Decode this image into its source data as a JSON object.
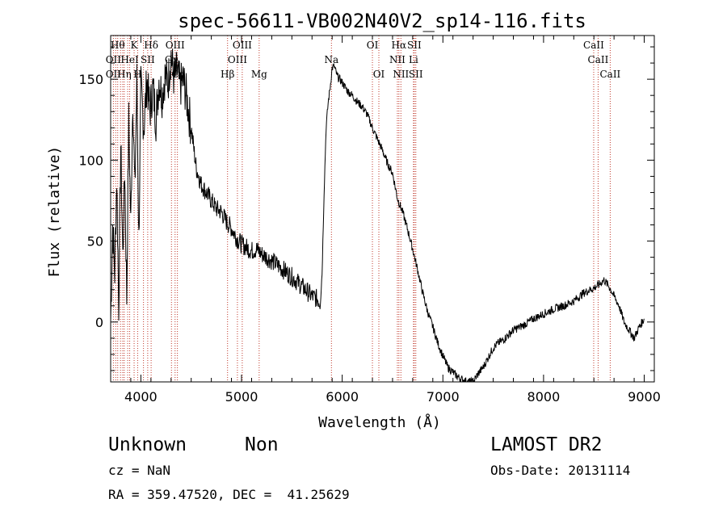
{
  "chart_data": {
    "type": "line",
    "title": "spec-56611-VB002N40V2_sp14-116.fits",
    "xlabel": "Wavelength (Å)",
    "ylabel": "Flux (relative)",
    "xlim": [
      3700,
      9100
    ],
    "ylim": [
      -37,
      177
    ],
    "xticks": [
      4000,
      5000,
      6000,
      7000,
      8000,
      9000
    ],
    "yticks": [
      0,
      50,
      100,
      150
    ],
    "grid": false,
    "series": [
      {
        "color": "#000000",
        "x": [
          3700,
          3720,
          3740,
          3760,
          3780,
          3800,
          3820,
          3840,
          3860,
          3880,
          3900,
          3920,
          3940,
          3960,
          3980,
          4000,
          4030,
          4060,
          4090,
          4120,
          4150,
          4180,
          4210,
          4240,
          4270,
          4300,
          4330,
          4360,
          4390,
          4420,
          4450,
          4500,
          4550,
          4600,
          4650,
          4700,
          4750,
          4800,
          4850,
          4900,
          4950,
          5000,
          5050,
          5100,
          5150,
          5200,
          5300,
          5400,
          5500,
          5600,
          5700,
          5760,
          5780,
          5800,
          5820,
          5840,
          5860,
          5880,
          5900,
          5920,
          5950,
          6000,
          6050,
          6100,
          6150,
          6200,
          6250,
          6300,
          6350,
          6400,
          6450,
          6500,
          6550,
          6600,
          6650,
          6700,
          6750,
          6800,
          6850,
          6900,
          6950,
          7000,
          7050,
          7100,
          7150,
          7200,
          7250,
          7300,
          7350,
          7400,
          7450,
          7500,
          7550,
          7600,
          7650,
          7700,
          7800,
          7900,
          8000,
          8100,
          8200,
          8300,
          8400,
          8500,
          8550,
          8600,
          8650,
          8700,
          8750,
          8800,
          8850,
          8900,
          8950,
          9000
        ],
        "y": [
          0,
          60,
          30,
          90,
          10,
          110,
          40,
          95,
          15,
          125,
          60,
          140,
          80,
          150,
          50,
          145,
          120,
          150,
          130,
          145,
          125,
          150,
          140,
          152,
          148,
          165,
          150,
          155,
          145,
          150,
          140,
          120,
          95,
          85,
          80,
          75,
          70,
          68,
          62,
          58,
          52,
          48,
          46,
          44,
          45,
          42,
          38,
          33,
          28,
          22,
          16,
          14,
          12,
          30,
          80,
          120,
          135,
          145,
          157,
          158,
          152,
          148,
          143,
          140,
          136,
          133,
          128,
          120,
          113,
          106,
          98,
          92,
          76,
          68,
          57,
          45,
          32,
          18,
          6,
          -3,
          -13,
          -21,
          -28,
          -31,
          -34,
          -36,
          -37,
          -37,
          -32,
          -28,
          -22,
          -16,
          -13,
          -11,
          -8,
          -5,
          -2,
          2,
          5,
          8,
          10,
          13,
          18,
          21,
          23,
          26,
          22,
          16,
          10,
          0,
          -5,
          -10,
          -3,
          2
        ]
      }
    ],
    "lines": {
      "color": "#c0392b",
      "positions": [
        3727,
        3750,
        3770,
        3798,
        3820,
        3835,
        3869,
        3889,
        3933,
        3968,
        4026,
        4068,
        4102,
        4304,
        4340,
        4363,
        4861,
        4959,
        5007,
        5175,
        5893,
        6300,
        6364,
        6548,
        6563,
        6583,
        6708,
        6716,
        6731,
        8498,
        8542,
        8662
      ],
      "labels": [
        {
          "text": "Hθ",
          "x": 3770,
          "row": 0
        },
        {
          "text": "K",
          "x": 3933,
          "row": 0
        },
        {
          "text": "Hδ",
          "x": 4102,
          "row": 0
        },
        {
          "text": "OIII",
          "x": 4340,
          "row": 0
        },
        {
          "text": "OIII",
          "x": 5007,
          "row": 0
        },
        {
          "text": "OI",
          "x": 6300,
          "row": 0
        },
        {
          "text": "Hα",
          "x": 6563,
          "row": 0
        },
        {
          "text": "SII",
          "x": 6716,
          "row": 0
        },
        {
          "text": "CaII",
          "x": 8498,
          "row": 0
        },
        {
          "text": "OII",
          "x": 3727,
          "row": 1
        },
        {
          "text": "HeI",
          "x": 3889,
          "row": 1
        },
        {
          "text": "SII",
          "x": 4068,
          "row": 1
        },
        {
          "text": "Gγ",
          "x": 4304,
          "row": 1
        },
        {
          "text": "OIII",
          "x": 4959,
          "row": 1
        },
        {
          "text": "Na",
          "x": 5893,
          "row": 1
        },
        {
          "text": "NII",
          "x": 6548,
          "row": 1
        },
        {
          "text": "Li",
          "x": 6708,
          "row": 1
        },
        {
          "text": "CaII",
          "x": 8542,
          "row": 1
        },
        {
          "text": "OII",
          "x": 3727,
          "row": 2
        },
        {
          "text": "Hη",
          "x": 3835,
          "row": 2
        },
        {
          "text": "H",
          "x": 3968,
          "row": 2
        },
        {
          "text": "Cr",
          "x": 4363,
          "row": 2
        },
        {
          "text": "Hβ",
          "x": 4861,
          "row": 2
        },
        {
          "text": "Mg",
          "x": 5175,
          "row": 2
        },
        {
          "text": "OI",
          "x": 6364,
          "row": 2
        },
        {
          "text": "NII",
          "x": 6583,
          "row": 2
        },
        {
          "text": "SII",
          "x": 6731,
          "row": 2
        },
        {
          "text": "CaII",
          "x": 8662,
          "row": 2
        }
      ]
    }
  },
  "info": {
    "left": {
      "class": "Unknown",
      "subclass": "Non",
      "cz": "cz = NaN",
      "radec": "RA = 359.47520, DEC =  41.25629"
    },
    "right": {
      "survey": "LAMOST DR2",
      "obsdate": "Obs-Date: 20131114"
    }
  }
}
